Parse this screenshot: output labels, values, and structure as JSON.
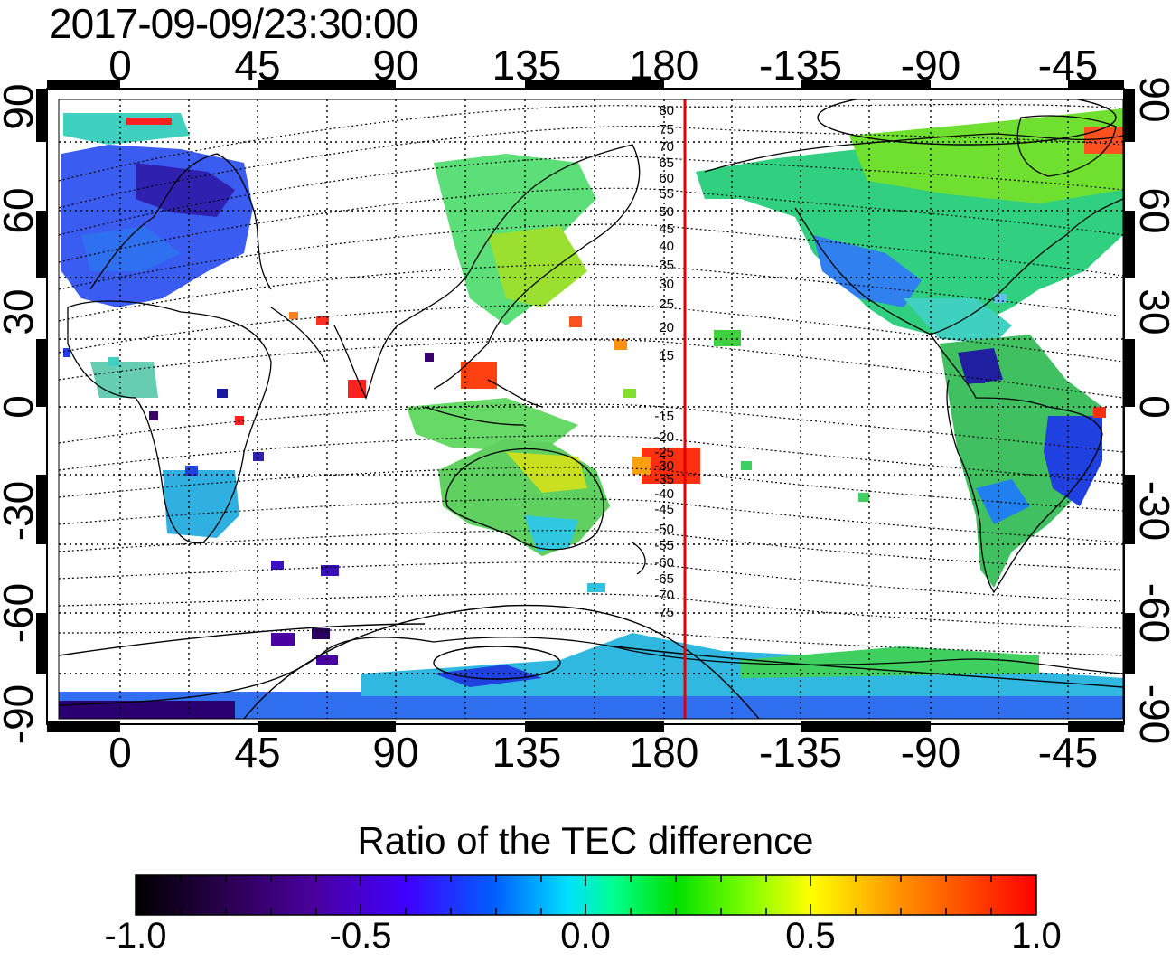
{
  "title": "2017-09-09/23:30:00",
  "colorbar": {
    "label": "Ratio of the TEC difference",
    "ticks": [
      "-1.0",
      "-0.5",
      "0.0",
      "0.5",
      "1.0"
    ],
    "colors": [
      "#000000",
      "#3a0070",
      "#5a00c0",
      "#0000ff",
      "#0090ff",
      "#00ffff",
      "#00ff70",
      "#00d000",
      "#90ff00",
      "#ffff00",
      "#ff9000",
      "#ff0000"
    ],
    "range": [
      -1.0,
      1.0
    ]
  },
  "axes": {
    "longitude_ticks": [
      "0",
      "45",
      "90",
      "135",
      "180",
      "-135",
      "-90",
      "-45"
    ],
    "latitude_ticks": [
      "90",
      "60",
      "30",
      "0",
      "-30",
      "-60",
      "-90"
    ]
  },
  "magnetic_latitude_labels": [
    "80",
    "75",
    "70",
    "65",
    "60",
    "55",
    "50",
    "45",
    "40",
    "35",
    "30",
    "25",
    "20",
    "15",
    "-15",
    "-20",
    "-25",
    "-30",
    "-35",
    "-40",
    "-45",
    "-50",
    "-55",
    "-60",
    "-65",
    "-70",
    "-75"
  ],
  "colors": {
    "meridian_line": "#e00000",
    "frame": "#000000"
  }
}
